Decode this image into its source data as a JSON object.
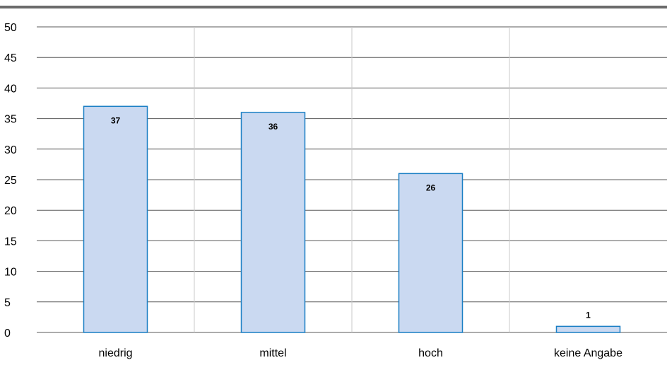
{
  "chart_data": {
    "type": "bar",
    "categories": [
      "niedrig",
      "mittel",
      "hoch",
      "keine Angabe"
    ],
    "values": [
      37,
      36,
      26,
      1
    ],
    "data_labels": [
      "37",
      "36",
      "26",
      "1"
    ],
    "title": "",
    "xlabel": "",
    "ylabel": "",
    "ylim": [
      0,
      50
    ],
    "yticks": [
      0,
      5,
      10,
      15,
      20,
      25,
      30,
      35,
      40,
      45,
      50
    ],
    "ytick_labels": [
      "0",
      "5",
      "10",
      "15",
      "20",
      "25",
      "30",
      "35",
      "40",
      "45",
      "50"
    ],
    "grid": true,
    "legend": "none",
    "bar_fill": "#cad9f1",
    "bar_stroke": "#1a7fc4",
    "grid_color": "#5a5a5a",
    "category_divider_color": "#c8c8c8",
    "top_rule_color": "#6b6b6b"
  }
}
